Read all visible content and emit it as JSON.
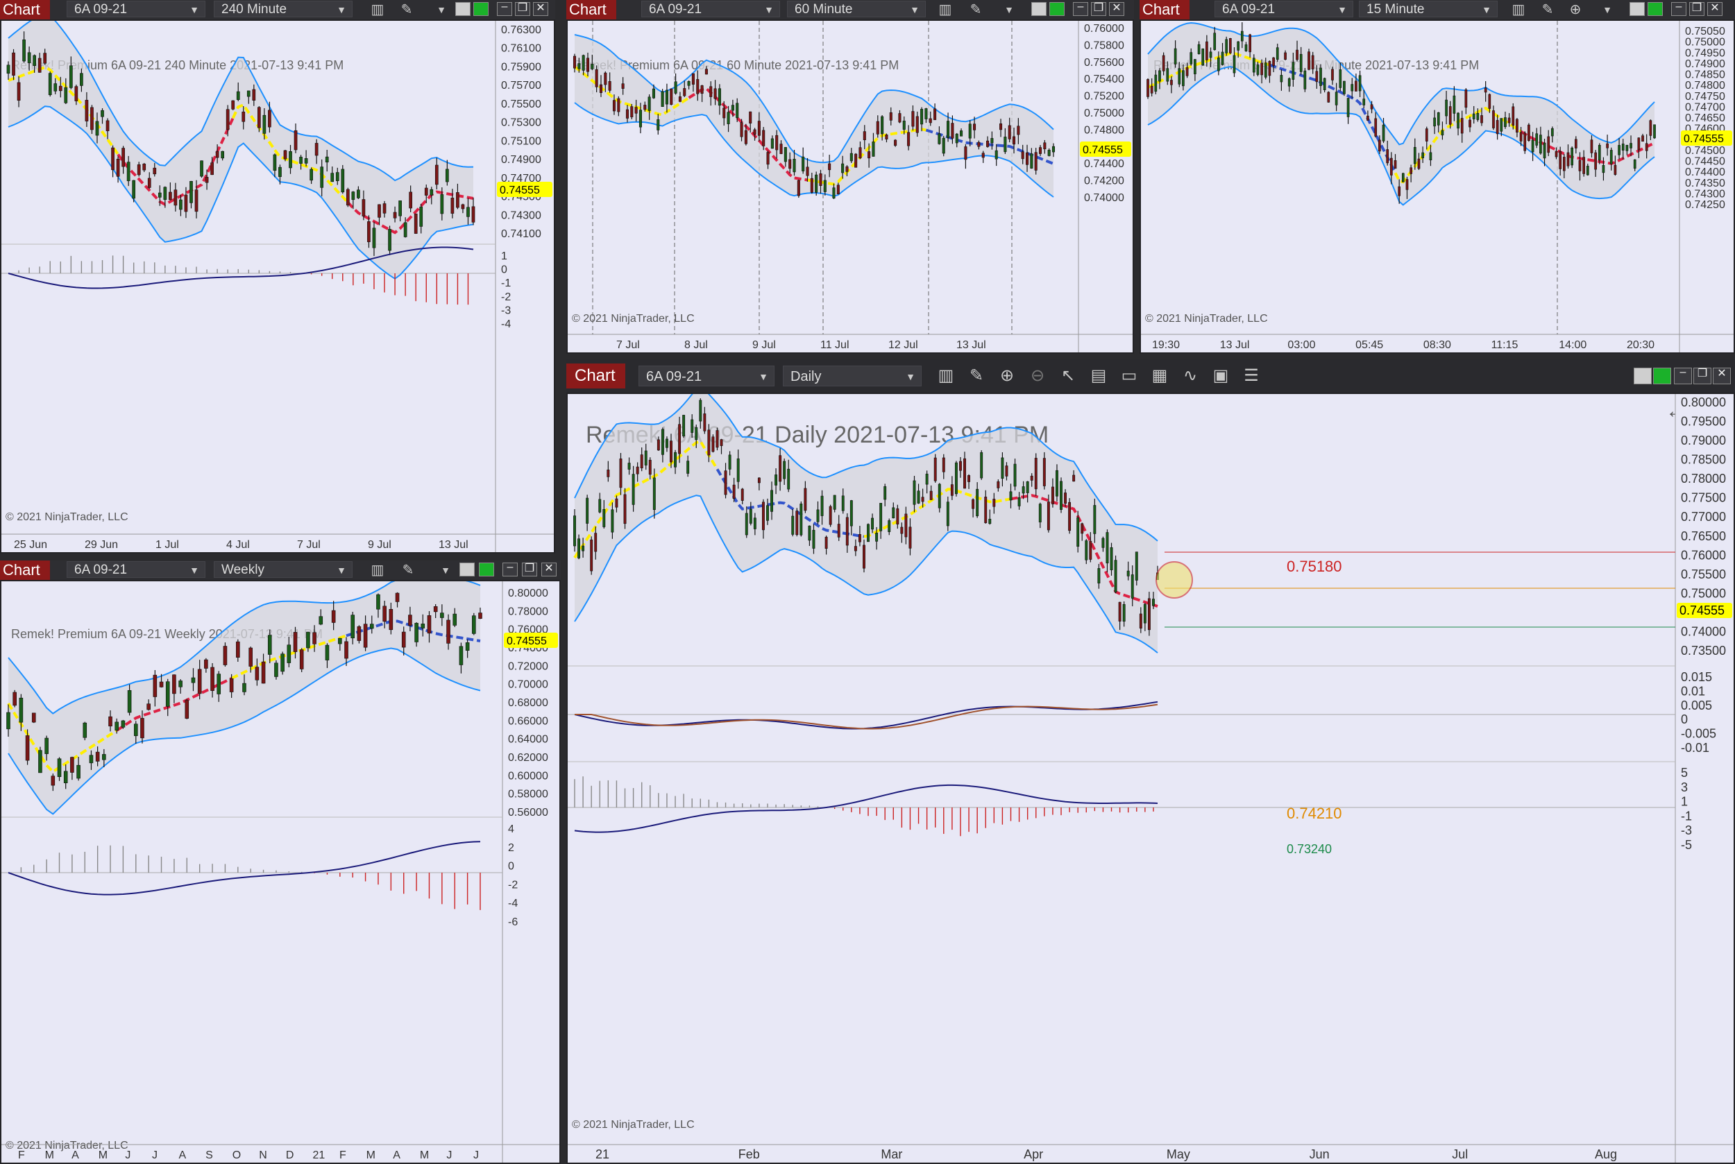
{
  "app": {
    "window_title": "Chart",
    "instrument": "6A 09-21",
    "copyright": "© 2021 NinjaTrader, LLC",
    "last_price": "0.74555"
  },
  "icons": [
    "bar-chart-icon",
    "pencil-icon",
    "zoom-icon",
    "pointer-icon",
    "properties-icon",
    "templates-icon",
    "data-series-icon",
    "indicators-icon",
    "strategies-icon",
    "list-icon",
    "chevron-down-icon",
    "minimize-icon",
    "maximize-icon",
    "close-icon",
    "back-arrow-icon"
  ],
  "colors": {
    "title_bar": "#8b1a1a",
    "chart_bg": "#e8e8f6",
    "band": "#1e90ff",
    "price_tag": "#ffff00",
    "link_green": "#1bb12a"
  },
  "windows": {
    "w240": {
      "interval": "240 Minute",
      "label": "Remek!  Premium  6A 09-21  240 Minute  2021-07-13 9:41 PM",
      "y_ticks": [
        "0.76300",
        "0.76100",
        "0.75900",
        "0.75700",
        "0.75500",
        "0.75300",
        "0.75100",
        "0.74900",
        "0.74700",
        "0.74500",
        "0.74300",
        "0.74100"
      ],
      "osc_ticks": [
        "1",
        "0",
        "-1",
        "-2",
        "-3",
        "-4"
      ],
      "x_ticks": [
        "25 Jun",
        "29 Jun",
        "1 Jul",
        "4 Jul",
        "7 Jul",
        "9 Jul",
        "13 Jul"
      ]
    },
    "w60": {
      "interval": "60 Minute",
      "label": "Remek!  Premium  6A 09-21  60 Minute  2021-07-13 9:41 PM",
      "y_ticks": [
        "0.76000",
        "0.75800",
        "0.75600",
        "0.75400",
        "0.75200",
        "0.75000",
        "0.74800",
        "0.74600",
        "0.74400",
        "0.74200",
        "0.74000"
      ],
      "x_ticks": [
        "7 Jul",
        "8 Jul",
        "9 Jul",
        "11 Jul",
        "12 Jul",
        "13 Jul"
      ]
    },
    "w15": {
      "interval": "15 Minute",
      "label": "Remek!  Premium  6A 09-21  15 Minute  2021-07-13 9:41 PM",
      "y_ticks": [
        "0.75050",
        "0.75000",
        "0.74950",
        "0.74900",
        "0.74850",
        "0.74800",
        "0.74750",
        "0.74700",
        "0.74650",
        "0.74600",
        "0.74550",
        "0.74500",
        "0.74450",
        "0.74400",
        "0.74350",
        "0.74300",
        "0.74250"
      ],
      "x_ticks": [
        "19:30",
        "13 Jul",
        "03:00",
        "05:45",
        "08:30",
        "11:15",
        "14:00",
        "20:30"
      ]
    },
    "wWeekly": {
      "interval": "Weekly",
      "label": "Remek!  Premium  6A 09-21  Weekly  2021-07-13 9:41 PM",
      "y_ticks": [
        "0.80000",
        "0.78000",
        "0.76000",
        "0.74000",
        "0.72000",
        "0.70000",
        "0.68000",
        "0.66000",
        "0.64000",
        "0.62000",
        "0.60000",
        "0.58000",
        "0.56000"
      ],
      "osc_ticks": [
        "4",
        "2",
        "0",
        "-2",
        "-4",
        "-6"
      ],
      "x_ticks": [
        "F",
        "M",
        "A",
        "M",
        "J",
        "J",
        "A",
        "S",
        "O",
        "N",
        "D",
        "21",
        "F",
        "M",
        "A",
        "M",
        "J",
        "J"
      ]
    },
    "wDaily": {
      "interval": "Daily",
      "label": "Remek!  6A 09-21  Daily  2021-07-13 9:41 PM",
      "y_ticks": [
        "0.80000",
        "0.79500",
        "0.79000",
        "0.78500",
        "0.78000",
        "0.77500",
        "0.77000",
        "0.76500",
        "0.76000",
        "0.75500",
        "0.75000",
        "0.74500",
        "0.74000",
        "0.73500"
      ],
      "osc1_ticks": [
        "0.015",
        "0.01",
        "0.005",
        "0",
        "-0.005",
        "-0.01"
      ],
      "osc2_ticks": [
        "5",
        "3",
        "1",
        "-1",
        "-3",
        "-5"
      ],
      "x_ticks": [
        "21",
        "Feb",
        "Mar",
        "Apr",
        "May",
        "Jun",
        "Jul",
        "Aug"
      ],
      "levels": {
        "upper": "0.75180",
        "mid": "0.74210",
        "lower": "0.73240"
      }
    }
  }
}
